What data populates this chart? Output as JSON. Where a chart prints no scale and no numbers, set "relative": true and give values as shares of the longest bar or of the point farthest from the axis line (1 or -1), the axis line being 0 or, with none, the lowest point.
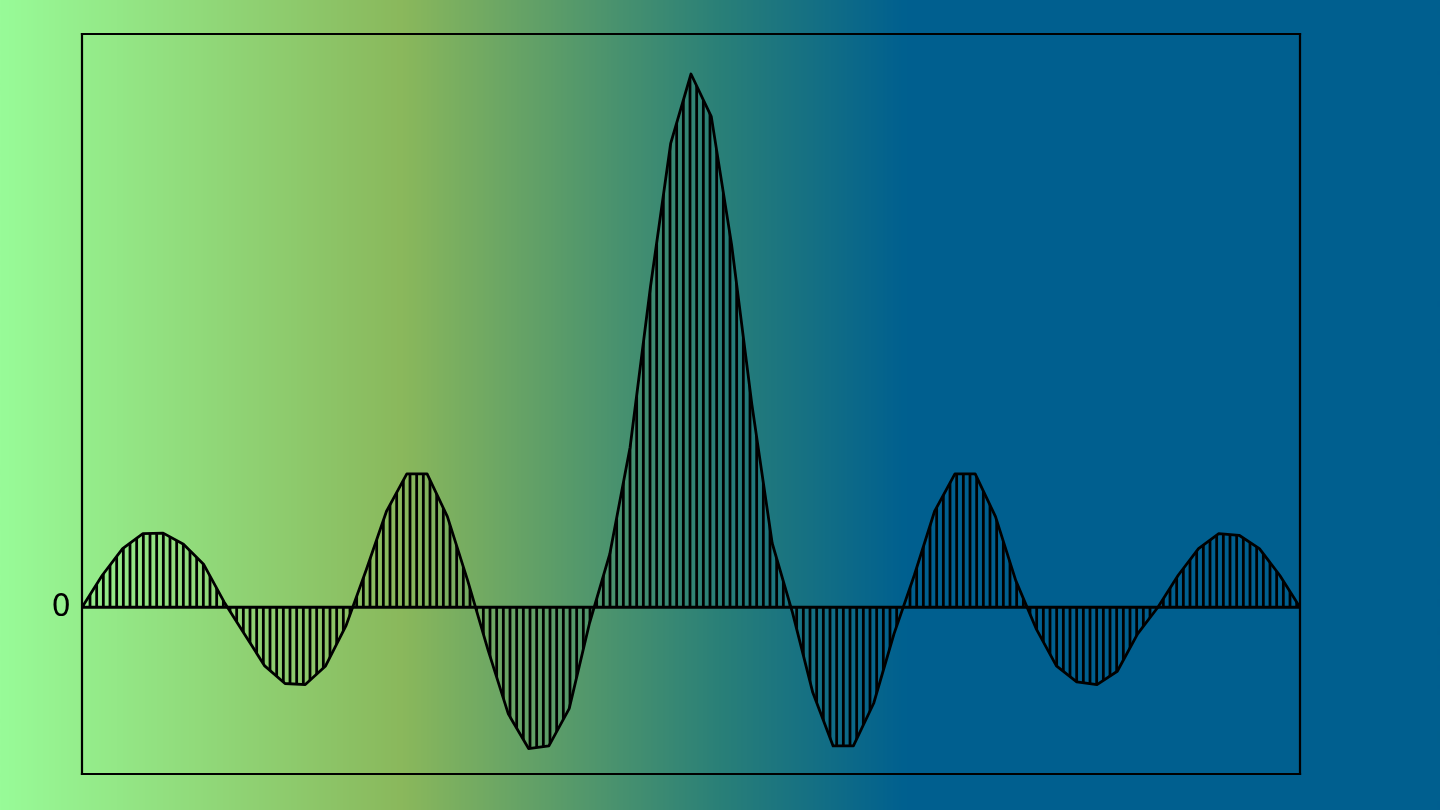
{
  "chart_data": {
    "type": "area",
    "relative": true,
    "color": "#000000",
    "categories": [
      null,
      null,
      null,
      null,
      null,
      null,
      null,
      null,
      null,
      null,
      null,
      null,
      null,
      null,
      null,
      null,
      null,
      null,
      null,
      null,
      null,
      null,
      null,
      null,
      null,
      null,
      null,
      null,
      null,
      null,
      null,
      null,
      null,
      null,
      null,
      null,
      null,
      null,
      null,
      null,
      null,
      null,
      null,
      null,
      null,
      null,
      null,
      null,
      null,
      null,
      null,
      null,
      null,
      null,
      null,
      null,
      null,
      null,
      null,
      null,
      null
    ],
    "values": [
      0,
      0.06,
      0.11,
      0.138,
      0.139,
      0.118,
      0.08,
      0.01,
      -0.05,
      -0.11,
      -0.143,
      -0.145,
      -0.11,
      -0.035,
      0.07,
      0.18,
      0.25,
      0.25,
      0.17,
      0.05,
      -0.08,
      -0.2,
      -0.265,
      -0.26,
      -0.19,
      -0.03,
      0.1,
      0.3,
      0.6,
      0.87,
      1,
      0.92,
      0.68,
      0.38,
      0.12,
      -0.01,
      -0.16,
      -0.26,
      -0.26,
      -0.18,
      -0.05,
      0.06,
      0.18,
      0.25,
      0.25,
      0.17,
      0.05,
      -0.04,
      -0.11,
      -0.14,
      -0.145,
      -0.12,
      -0.05,
      0,
      0.06,
      0.11,
      0.138,
      0.135,
      0.11,
      0.06,
      0
    ],
    "annotations": [
      "0"
    ]
  }
}
